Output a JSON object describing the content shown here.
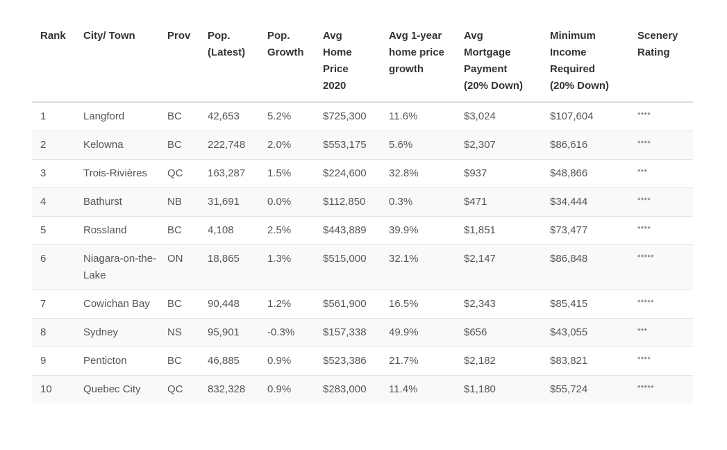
{
  "table": {
    "headers": {
      "rank": "Rank",
      "city": "City/ Town",
      "prov": "Prov",
      "pop_l1": "Pop.",
      "pop_l2": "(Latest)",
      "growth_l1": "Pop.",
      "growth_l2": "Growth",
      "price_l1": "Avg",
      "price_l2": "Home",
      "price_l3": "Price",
      "price_l4": "2020",
      "hpg_l1": "Avg 1-year",
      "hpg_l2": "home price",
      "hpg_l3": "growth",
      "mort_l1": "Avg",
      "mort_l2": "Mortgage",
      "mort_l3": "Payment",
      "mort_l4": "(20% Down)",
      "inc_l1": "Minimum",
      "inc_l2": "Income",
      "inc_l3": "Required",
      "inc_l4": "(20% Down)",
      "scen_l1": "Scenery",
      "scen_l2": "Rating"
    },
    "rows": [
      {
        "rank": "1",
        "city": "Langford",
        "prov": "BC",
        "pop": "42,653",
        "growth": "5.2%",
        "price": "$725,300",
        "price_growth": "11.6%",
        "mortgage": "$3,024",
        "income": "$107,604",
        "scenery": "****"
      },
      {
        "rank": "2",
        "city": "Kelowna",
        "prov": "BC",
        "pop": "222,748",
        "growth": "2.0%",
        "price": "$553,175",
        "price_growth": "5.6%",
        "mortgage": "$2,307",
        "income": "$86,616",
        "scenery": "****"
      },
      {
        "rank": "3",
        "city": "Trois-Rivières",
        "prov": "QC",
        "pop": "163,287",
        "growth": "1.5%",
        "price": "$224,600",
        "price_growth": "32.8%",
        "mortgage": "$937",
        "income": "$48,866",
        "scenery": "***"
      },
      {
        "rank": "4",
        "city": "Bathurst",
        "prov": "NB",
        "pop": "31,691",
        "growth": "0.0%",
        "price": "$112,850",
        "price_growth": "0.3%",
        "mortgage": "$471",
        "income": "$34,444",
        "scenery": "****"
      },
      {
        "rank": "5",
        "city": "Rossland",
        "prov": "BC",
        "pop": "4,108",
        "growth": "2.5%",
        "price": "$443,889",
        "price_growth": "39.9%",
        "mortgage": "$1,851",
        "income": "$73,477",
        "scenery": "****"
      },
      {
        "rank": "6",
        "city": "Niagara-on-the-Lake",
        "prov": "ON",
        "pop": "18,865",
        "growth": "1.3%",
        "price": "$515,000",
        "price_growth": "32.1%",
        "mortgage": "$2,147",
        "income": "$86,848",
        "scenery": "*****"
      },
      {
        "rank": "7",
        "city": "Cowichan Bay",
        "prov": "BC",
        "pop": "90,448",
        "growth": "1.2%",
        "price": "$561,900",
        "price_growth": "16.5%",
        "mortgage": "$2,343",
        "income": "$85,415",
        "scenery": "*****"
      },
      {
        "rank": "8",
        "city": "Sydney",
        "prov": "NS",
        "pop": "95,901",
        "growth": "-0.3%",
        "price": "$157,338",
        "price_growth": "49.9%",
        "mortgage": "$656",
        "income": "$43,055",
        "scenery": "***"
      },
      {
        "rank": "9",
        "city": "Penticton",
        "prov": "BC",
        "pop": "46,885",
        "growth": "0.9%",
        "price": "$523,386",
        "price_growth": "21.7%",
        "mortgage": "$2,182",
        "income": "$83,821",
        "scenery": "****"
      },
      {
        "rank": "10",
        "city": "Quebec City",
        "prov": "QC",
        "pop": "832,328",
        "growth": "0.9%",
        "price": "$283,000",
        "price_growth": "11.4%",
        "mortgage": "$1,180",
        "income": "$55,724",
        "scenery": "*****"
      }
    ]
  }
}
